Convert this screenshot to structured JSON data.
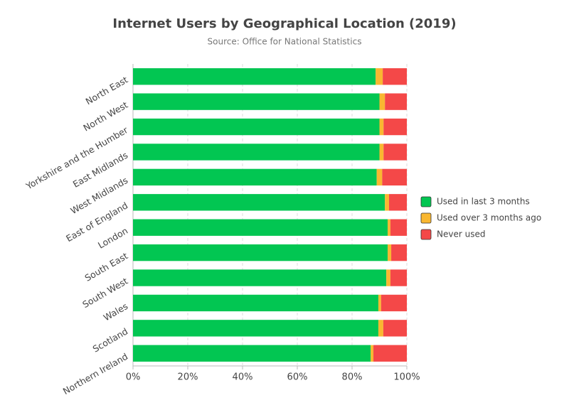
{
  "chart_data": {
    "type": "stacked-bar-horizontal",
    "title": "Internet Users by Geographical Location (2019)",
    "subtitle": "Source: Office for National Statistics",
    "categories": [
      "North East",
      "North West",
      "Yorkshire and the Humber",
      "East Midlands",
      "West Midlands",
      "East of England",
      "London",
      "South East",
      "South West",
      "Wales",
      "Scotland",
      "Northern Ireland"
    ],
    "series": [
      {
        "name": "Used in last 3 months",
        "color": "#02c652",
        "values": [
          88.6,
          90,
          90,
          90,
          89,
          92,
          93,
          93,
          92.5,
          89.6,
          89.6,
          86.8
        ]
      },
      {
        "name": "Used over 3 months ago",
        "color": "#f9b731",
        "values": [
          2.6,
          2,
          1.5,
          1.5,
          2,
          1.5,
          1,
          1.3,
          1.5,
          1,
          1.8,
          1
        ]
      },
      {
        "name": "Never used",
        "color": "#f44848",
        "values": [
          8.8,
          8,
          8.5,
          8.5,
          9,
          6.5,
          6,
          5.7,
          6,
          9.4,
          8.6,
          12.2
        ]
      }
    ],
    "xlim": [
      0,
      100
    ],
    "xticks": [
      {
        "value": 0,
        "label": "0%"
      },
      {
        "value": 20,
        "label": "20%"
      },
      {
        "value": 40,
        "label": "40%"
      },
      {
        "value": 60,
        "label": "60%"
      },
      {
        "value": 80,
        "label": "80%"
      },
      {
        "value": 100,
        "label": "100%"
      }
    ],
    "grid": true,
    "legend": "right"
  }
}
